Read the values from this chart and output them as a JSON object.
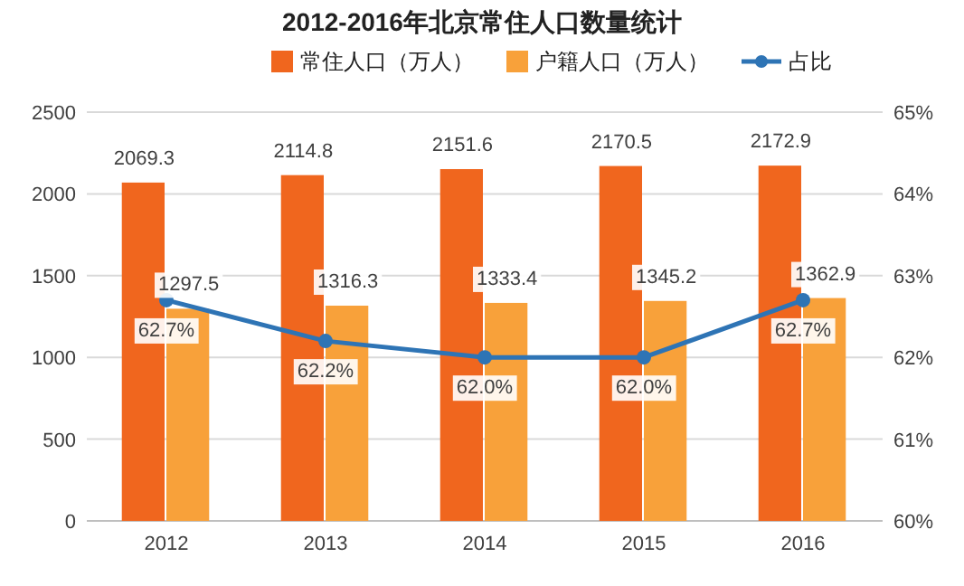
{
  "chart_data": {
    "type": "bar",
    "title": "2012-2016年北京常住人口数量统计",
    "categories": [
      "2012",
      "2013",
      "2014",
      "2015",
      "2016"
    ],
    "series": [
      {
        "name": "常住人口（万人）",
        "color": "#f0661e",
        "values": [
          2069.3,
          2114.8,
          2151.6,
          2170.5,
          2172.9
        ]
      },
      {
        "name": "户籍人口（万人）",
        "color": "#f8a13a",
        "values": [
          1297.5,
          1316.3,
          1333.4,
          1345.2,
          1362.9
        ]
      },
      {
        "name": "占比",
        "type": "line",
        "axis": "y2",
        "color": "#2e74b5",
        "marker": "circle",
        "values": [
          62.7,
          62.2,
          62.0,
          62.0,
          62.7
        ],
        "value_labels": [
          "62.7%",
          "62.2%",
          "62.0%",
          "62.0%",
          "62.7%"
        ]
      }
    ],
    "ylim": [
      0,
      2500
    ],
    "yticks": [
      0,
      500,
      1000,
      1500,
      2000,
      2500
    ],
    "y2lim": [
      60,
      65
    ],
    "y2ticks": [
      {
        "value": 60,
        "label": "60%"
      },
      {
        "value": 61,
        "label": "61%"
      },
      {
        "value": 62,
        "label": "62%"
      },
      {
        "value": 63,
        "label": "63%"
      },
      {
        "value": 64,
        "label": "64%"
      },
      {
        "value": 65,
        "label": "65%"
      }
    ],
    "data_labels": true,
    "grid": "y",
    "legend": "top"
  }
}
